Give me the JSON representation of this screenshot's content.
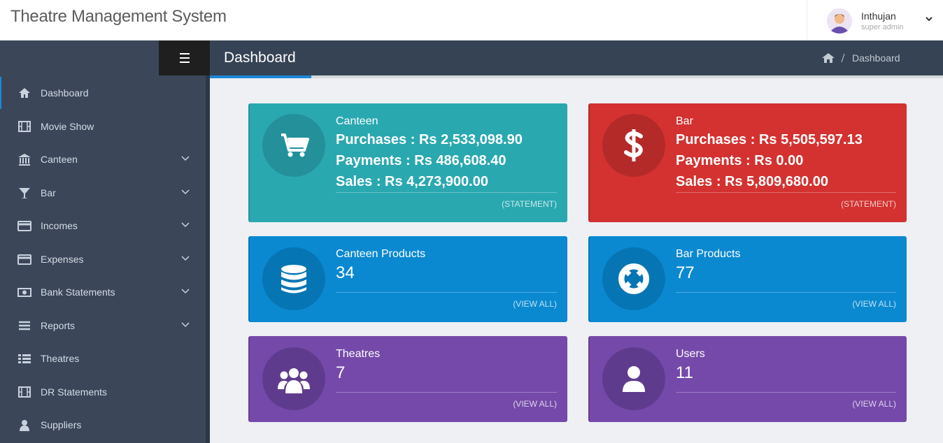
{
  "header": {
    "title": "Theatre Management System",
    "user": {
      "name": "Inthujan",
      "role": "super admin"
    }
  },
  "page_header": {
    "title": "Dashboard",
    "breadcrumb": [
      "Dashboard"
    ]
  },
  "sidebar": {
    "items": [
      "Dashboard",
      "Movie Show",
      "Canteen",
      "Bar",
      "Incomes",
      "Expenses",
      "Bank Statements",
      "Reports",
      "Theatres",
      "DR Statements",
      "Suppliers"
    ]
  },
  "cards": [
    {
      "title": "Canteen",
      "lines": [
        "Purchases : Rs 2,533,098.90",
        "Payments : Rs 486,608.40",
        "Sales : Rs 4,273,900.00"
      ],
      "link": "(STATEMENT)"
    },
    {
      "title": "Bar",
      "lines": [
        "Purchases : Rs 5,505,597.13",
        "Payments : Rs 0.00",
        "Sales : Rs 5,809,680.00"
      ],
      "link": "(STATEMENT)"
    },
    {
      "title": "Canteen Products",
      "value": 34,
      "link": "(VIEW ALL)"
    },
    {
      "title": "Bar Products",
      "value": 77,
      "link": "(VIEW ALL)"
    },
    {
      "title": "Theatres",
      "value": 7,
      "link": "(VIEW ALL)"
    },
    {
      "title": "Users",
      "value": 11,
      "link": "(VIEW ALL)"
    }
  ]
}
